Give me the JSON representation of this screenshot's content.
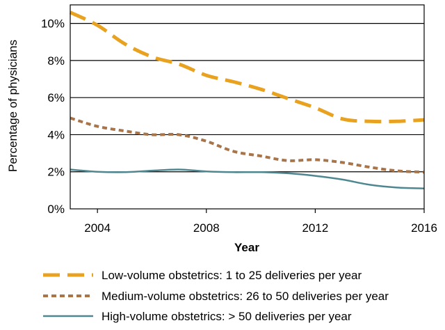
{
  "chart_data": {
    "type": "line",
    "xlabel": "Year",
    "ylabel": "Percentage of physicians",
    "xlim": [
      2003,
      2016
    ],
    "ylim": [
      0,
      11
    ],
    "x_ticks": [
      2004,
      2008,
      2012,
      2016
    ],
    "y_ticks": [
      0,
      2,
      4,
      6,
      8,
      10
    ],
    "y_tick_labels": [
      "0%",
      "2%",
      "4%",
      "6%",
      "8%",
      "10%"
    ],
    "grid": "horizontal",
    "legend_position": "bottom",
    "x": [
      2003,
      2004,
      2005,
      2006,
      2007,
      2008,
      2009,
      2010,
      2011,
      2012,
      2013,
      2014,
      2015,
      2016
    ],
    "series": [
      {
        "name": "Low-volume obstetrics: 1 to 25 deliveries per year",
        "color": "#E8A21F",
        "style": "long-dash",
        "values": [
          10.6,
          9.9,
          8.9,
          8.2,
          7.8,
          7.2,
          6.85,
          6.45,
          5.95,
          5.45,
          4.85,
          4.72,
          4.72,
          4.8
        ]
      },
      {
        "name": "Medium-volume obstetrics: 26 to 50 deliveries per year",
        "color": "#A8744A",
        "style": "short-dash",
        "values": [
          4.9,
          4.45,
          4.2,
          4.0,
          4.0,
          3.65,
          3.1,
          2.85,
          2.6,
          2.65,
          2.5,
          2.25,
          2.05,
          1.98
        ]
      },
      {
        "name": "High-volume obstetrics: > 50 deliveries per year",
        "color": "#4F8791",
        "style": "solid",
        "values": [
          2.12,
          2.0,
          1.98,
          2.06,
          2.12,
          2.02,
          1.98,
          1.98,
          1.92,
          1.78,
          1.58,
          1.3,
          1.15,
          1.1
        ]
      }
    ]
  }
}
